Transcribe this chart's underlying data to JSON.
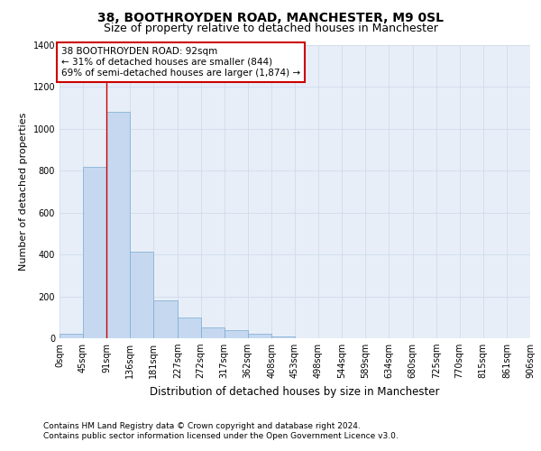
{
  "title": "38, BOOTHROYDEN ROAD, MANCHESTER, M9 0SL",
  "subtitle": "Size of property relative to detached houses in Manchester",
  "xlabel": "Distribution of detached houses by size in Manchester",
  "ylabel": "Number of detached properties",
  "bar_values": [
    20,
    820,
    1080,
    415,
    180,
    100,
    52,
    38,
    20,
    10,
    0,
    0,
    0,
    0,
    0,
    0,
    0,
    0,
    0,
    0
  ],
  "bar_edges": [
    0,
    45,
    91,
    136,
    181,
    227,
    272,
    317,
    362,
    408,
    453,
    498,
    544,
    589,
    634,
    680,
    725,
    770,
    815,
    861,
    906
  ],
  "tick_labels": [
    "0sqm",
    "45sqm",
    "91sqm",
    "136sqm",
    "181sqm",
    "227sqm",
    "272sqm",
    "317sqm",
    "362sqm",
    "408sqm",
    "453sqm",
    "498sqm",
    "544sqm",
    "589sqm",
    "634sqm",
    "680sqm",
    "725sqm",
    "770sqm",
    "815sqm",
    "861sqm",
    "906sqm"
  ],
  "bar_color": "#c5d8f0",
  "bar_edgecolor": "#7aaad0",
  "grid_color": "#d0dcea",
  "background_color": "#e8eef8",
  "vline_x": 91,
  "vline_color": "#cc0000",
  "annotation_line1": "38 BOOTHROYDEN ROAD: 92sqm",
  "annotation_line2": "← 31% of detached houses are smaller (844)",
  "annotation_line3": "69% of semi-detached houses are larger (1,874) →",
  "annotation_box_edgecolor": "#cc0000",
  "ylim": [
    0,
    1400
  ],
  "yticks": [
    0,
    200,
    400,
    600,
    800,
    1000,
    1200,
    1400
  ],
  "footer_line1": "Contains HM Land Registry data © Crown copyright and database right 2024.",
  "footer_line2": "Contains public sector information licensed under the Open Government Licence v3.0.",
  "title_fontsize": 10,
  "subtitle_fontsize": 9,
  "xlabel_fontsize": 8.5,
  "ylabel_fontsize": 8,
  "tick_fontsize": 7,
  "footer_fontsize": 6.5,
  "annotation_fontsize": 7.5
}
